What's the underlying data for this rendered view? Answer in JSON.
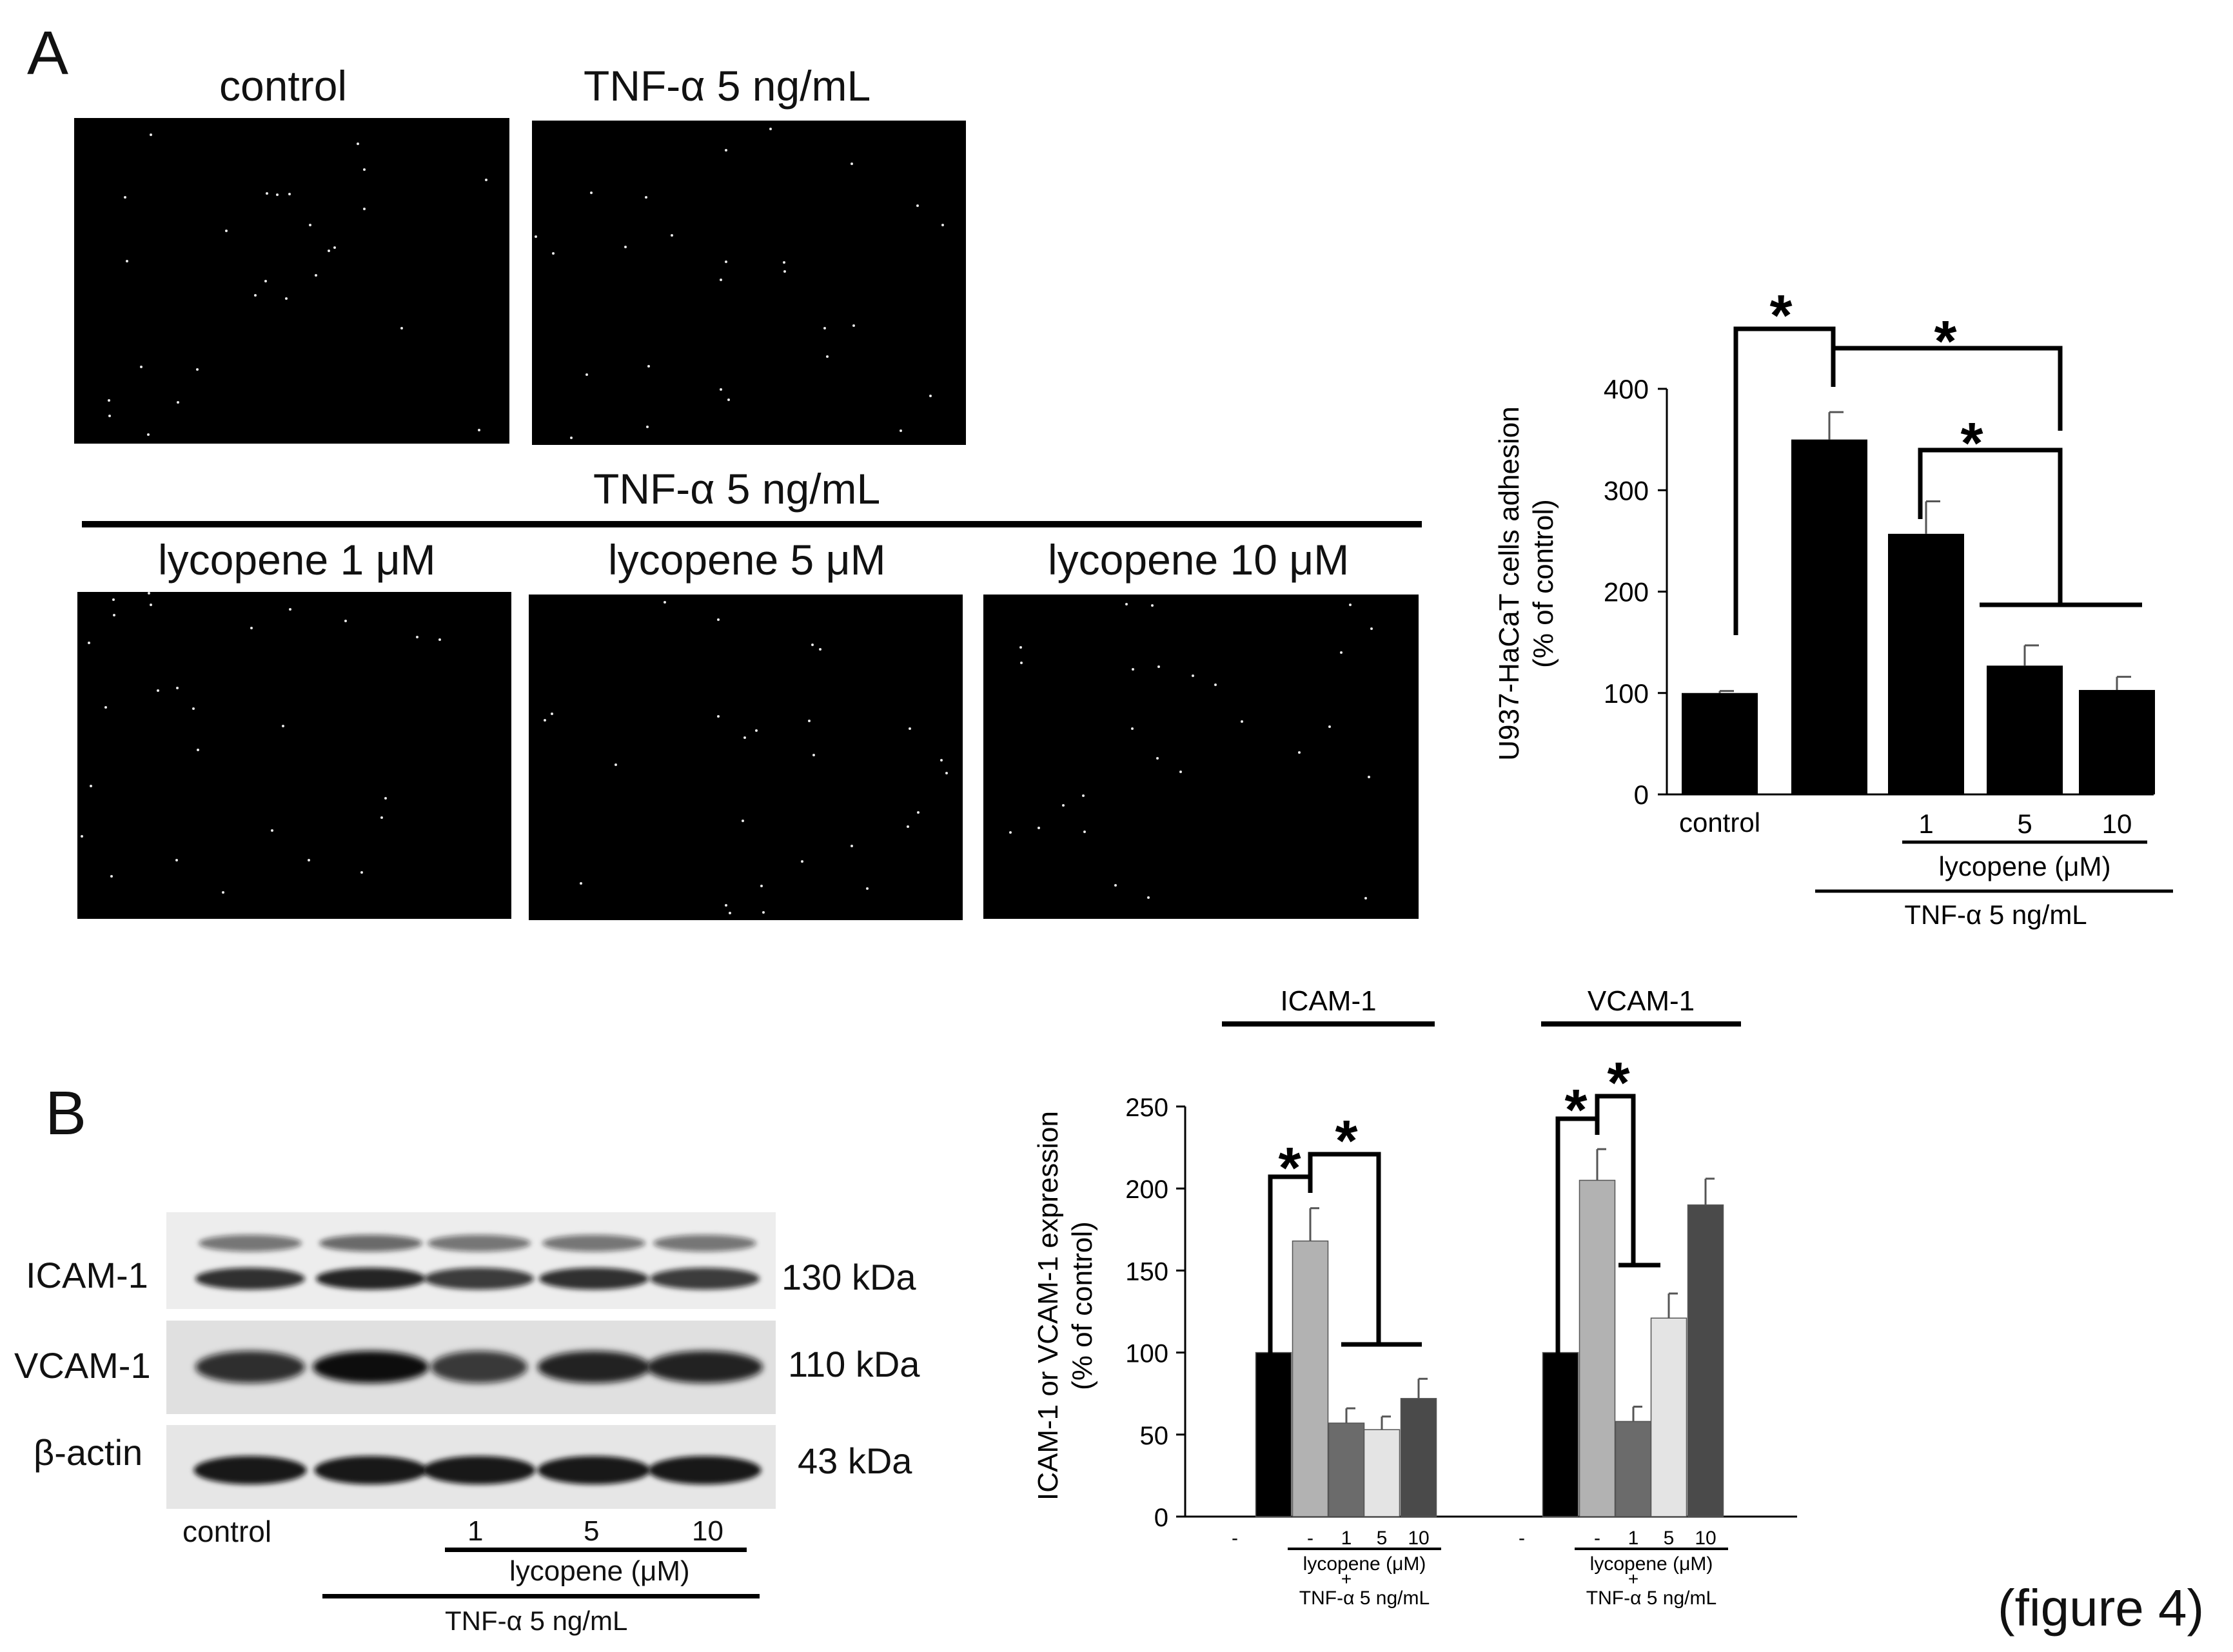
{
  "panel_a": {
    "label": "A",
    "top_titles": [
      "control",
      "TNF-α 5 ng/mL"
    ],
    "group_title": "TNF-α 5 ng/mL",
    "bottom_titles": [
      "lycopene 1 μM",
      "lycopene 5 μM",
      "lycopene 10 μM"
    ]
  },
  "panel_b": {
    "label": "B",
    "blot_rows": [
      {
        "name": "ICAM-1",
        "mw": "130 kDa"
      },
      {
        "name": "VCAM-1",
        "mw": "110 kDa"
      },
      {
        "name": "β-actin",
        "mw": "43 kDa"
      }
    ],
    "lane_labels": [
      "control",
      "",
      "1",
      "5",
      "10"
    ],
    "lycopene_label": "lycopene (μM)",
    "tnf_label": "TNF-α 5 ng/mL"
  },
  "figure_label": "(figure 4)",
  "chart_data": [
    {
      "type": "bar",
      "ylabel": "U937-HaCaT cells adhesion\n(% of control)",
      "ylim": [
        0,
        400
      ],
      "yticks": [
        "0",
        "100",
        "200",
        "300",
        "400"
      ],
      "categories": [
        "control",
        "",
        "1",
        "5",
        "10"
      ],
      "values": [
        100,
        350,
        257,
        127,
        103
      ],
      "errors": [
        2,
        27,
        32,
        20,
        13
      ],
      "bar_color": "#000000",
      "lycopene_label": "lycopene (μM)",
      "tnf_label": "TNF-α 5 ng/mL",
      "significance": "*"
    },
    {
      "type": "bar",
      "ylabel": "ICAM-1 or VCAM-1 expression\n(% of control)",
      "ylim": [
        0,
        250
      ],
      "yticks": [
        "0",
        "50",
        "100",
        "150",
        "200",
        "250"
      ],
      "groups": [
        {
          "name": "ICAM-1",
          "values": [
            100,
            168,
            57,
            53,
            72
          ],
          "errors": [
            0,
            20,
            9,
            8,
            12
          ]
        },
        {
          "name": "VCAM-1",
          "values": [
            100,
            205,
            58,
            121,
            190
          ],
          "errors": [
            0,
            19,
            9,
            15,
            16
          ]
        }
      ],
      "categories": [
        "-",
        "-",
        "1",
        "5",
        "10"
      ],
      "bar_colors": [
        "#000000",
        "#b2b2b2",
        "#6b6b6b",
        "#e4e4e4",
        "#4a4a4a"
      ],
      "lycopene_label": "lycopene (μM)",
      "plus": "+",
      "tnf_label": "TNF-α 5 ng/mL",
      "significance": "*"
    }
  ]
}
